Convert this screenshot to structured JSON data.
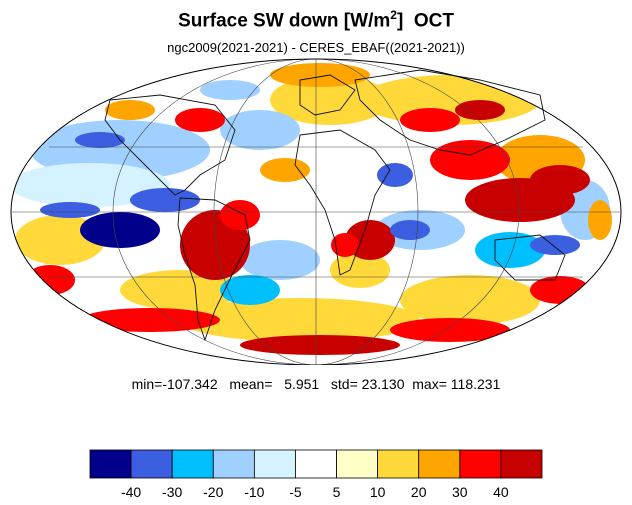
{
  "title": {
    "main": "Surface SW down [W/m",
    "sup": "2",
    "close": "]",
    "month": "OCT"
  },
  "subtitle": "ngc2009(2021-2021) - CERES_EBAF((2021-2021))",
  "stats": {
    "min_label": "min=",
    "min": "-107.342",
    "mean_label": "mean=",
    "mean": "5.951",
    "std_label": "std=",
    "std": "23.130",
    "max_label": "max=",
    "max": "118.231"
  },
  "colorbar": {
    "colors": [
      "#00008b",
      "#3b5fe0",
      "#00bfff",
      "#9fd0ff",
      "#d4f2ff",
      "#ffffff",
      "#ffffc8",
      "#ffd93a",
      "#ffa500",
      "#ff0000",
      "#c80000"
    ],
    "labels": [
      "-40",
      "-30",
      "-20",
      "-10",
      "-5",
      "5",
      "10",
      "20",
      "30",
      "40"
    ]
  },
  "map_style": {
    "projection": "mollweide",
    "gridlines": true,
    "coastlines": true,
    "ocean_fill": "#ffffff"
  }
}
